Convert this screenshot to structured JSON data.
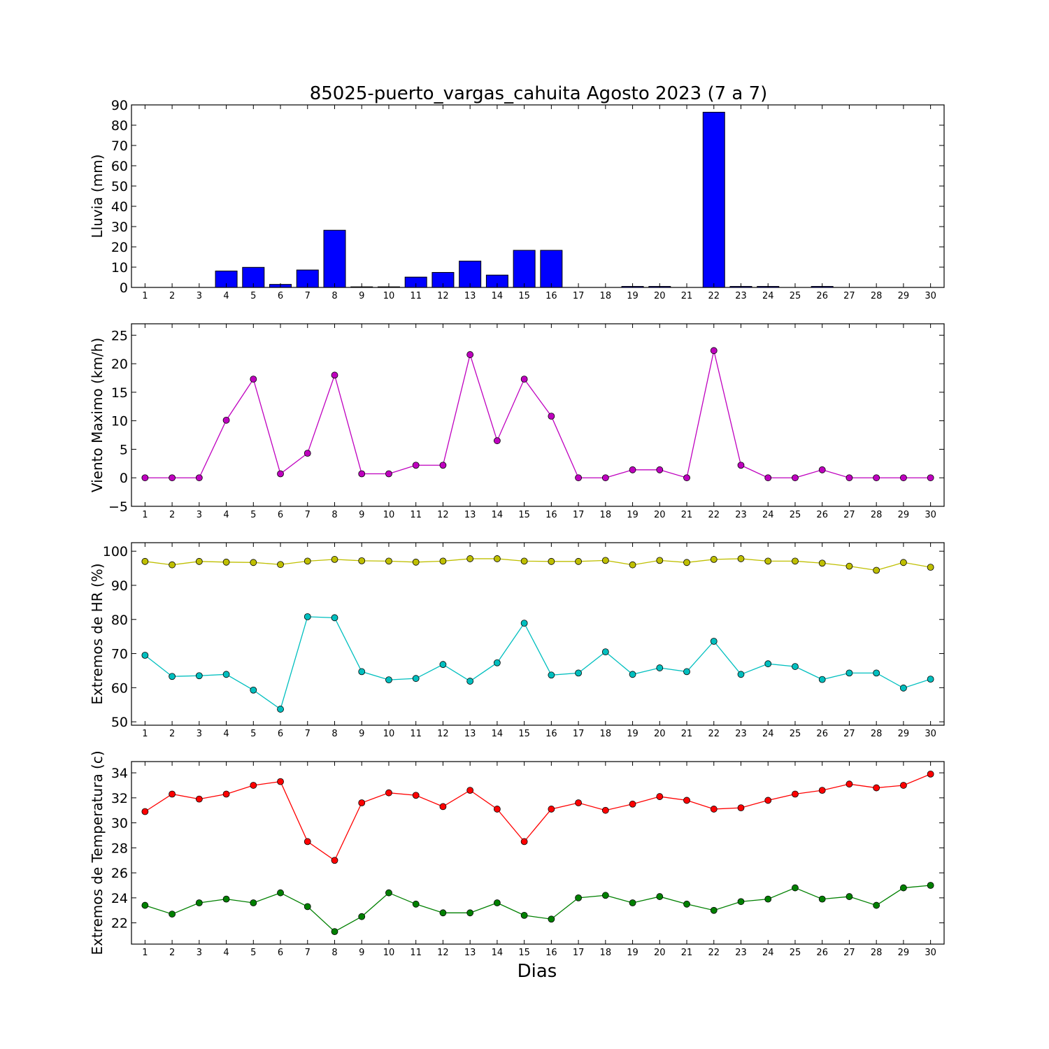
{
  "title": "85025-puerto_vargas_cahuita Agosto 2023  (7 a 7)",
  "xlabel": "Dias",
  "chart_data": [
    {
      "type": "bar",
      "ylabel": "Lluvia (mm)",
      "ylim": [
        0,
        90
      ],
      "yticks": [
        0,
        10,
        20,
        30,
        40,
        50,
        60,
        70,
        80,
        90
      ],
      "xlim": [
        0.5,
        30.5
      ],
      "categories": [
        1,
        2,
        3,
        4,
        5,
        6,
        7,
        8,
        9,
        10,
        11,
        12,
        13,
        14,
        15,
        16,
        17,
        18,
        19,
        20,
        21,
        22,
        23,
        24,
        25,
        26,
        27,
        28,
        29,
        30
      ],
      "series": [
        {
          "color": "#0000ff",
          "values": [
            0,
            0,
            0,
            8.1,
            9.9,
            1.5,
            8.6,
            28.2,
            0.3,
            0.3,
            5.1,
            7.4,
            13.0,
            6.1,
            18.3,
            18.3,
            0,
            0,
            0.5,
            0.5,
            0,
            86.4,
            0.5,
            0.5,
            0,
            0.5,
            0,
            0,
            0,
            0
          ]
        }
      ],
      "grid": false
    },
    {
      "type": "line",
      "ylabel": "Viento Maximo (km/h)",
      "ylim": [
        -5,
        27
      ],
      "yticks": [
        -5,
        0,
        5,
        10,
        15,
        20,
        25
      ],
      "xlim": [
        0.5,
        30.5
      ],
      "x": [
        1,
        2,
        3,
        4,
        5,
        6,
        7,
        8,
        9,
        10,
        11,
        12,
        13,
        14,
        15,
        16,
        17,
        18,
        19,
        20,
        21,
        22,
        23,
        24,
        25,
        26,
        27,
        28,
        29,
        30
      ],
      "series": [
        {
          "color": "#bf00bf",
          "values": [
            0,
            0,
            0,
            10.1,
            17.3,
            0.7,
            4.3,
            18.0,
            0.7,
            0.7,
            2.2,
            2.2,
            21.6,
            6.5,
            17.3,
            10.8,
            0,
            0,
            1.4,
            1.4,
            0,
            22.3,
            2.2,
            0,
            0,
            1.4,
            0,
            0,
            0,
            0
          ]
        }
      ],
      "grid": false
    },
    {
      "type": "line",
      "ylabel": "Extremos de HR (%)",
      "ylim": [
        49,
        102.5
      ],
      "yticks": [
        50,
        60,
        70,
        80,
        90,
        100
      ],
      "xlim": [
        0.5,
        30.5
      ],
      "x": [
        1,
        2,
        3,
        4,
        5,
        6,
        7,
        8,
        9,
        10,
        11,
        12,
        13,
        14,
        15,
        16,
        17,
        18,
        19,
        20,
        21,
        22,
        23,
        24,
        25,
        26,
        27,
        28,
        29,
        30
      ],
      "series": [
        {
          "color": "#bfbf00",
          "values": [
            97.0,
            96.0,
            97.0,
            96.8,
            96.7,
            96.1,
            97.1,
            97.6,
            97.2,
            97.1,
            96.8,
            97.1,
            97.8,
            97.8,
            97.1,
            97.0,
            97.0,
            97.3,
            96.0,
            97.3,
            96.7,
            97.6,
            97.8,
            97.1,
            97.1,
            96.5,
            95.6,
            94.4,
            96.7,
            95.3
          ]
        },
        {
          "color": "#00bfbf",
          "values": [
            69.5,
            63.3,
            63.5,
            63.9,
            59.3,
            53.7,
            80.8,
            80.5,
            64.7,
            62.3,
            62.7,
            66.8,
            61.9,
            67.3,
            78.9,
            63.7,
            64.3,
            70.5,
            63.9,
            65.8,
            64.7,
            73.6,
            63.9,
            67.0,
            66.2,
            62.4,
            64.3,
            64.3,
            59.9,
            62.5
          ]
        }
      ],
      "grid": false
    },
    {
      "type": "line",
      "ylabel": "Extremos de Temperatura (c)",
      "ylim": [
        20.3,
        34.9
      ],
      "yticks": [
        22,
        24,
        26,
        28,
        30,
        32,
        34
      ],
      "xlim": [
        0.5,
        30.5
      ],
      "x": [
        1,
        2,
        3,
        4,
        5,
        6,
        7,
        8,
        9,
        10,
        11,
        12,
        13,
        14,
        15,
        16,
        17,
        18,
        19,
        20,
        21,
        22,
        23,
        24,
        25,
        26,
        27,
        28,
        29,
        30
      ],
      "series": [
        {
          "color": "#ff0000",
          "values": [
            30.9,
            32.3,
            31.9,
            32.3,
            33.0,
            33.3,
            28.5,
            27.0,
            31.6,
            32.4,
            32.2,
            31.3,
            32.6,
            31.1,
            28.5,
            31.1,
            31.6,
            31.0,
            31.5,
            32.1,
            31.8,
            31.1,
            31.2,
            31.8,
            32.3,
            32.6,
            33.1,
            32.8,
            33.0,
            33.9
          ]
        },
        {
          "color": "#008000",
          "values": [
            23.4,
            22.7,
            23.6,
            23.9,
            23.6,
            24.4,
            23.3,
            21.3,
            22.5,
            24.4,
            23.5,
            22.8,
            22.8,
            23.6,
            22.6,
            22.3,
            24.0,
            24.2,
            23.6,
            24.1,
            23.5,
            23.0,
            23.7,
            23.9,
            24.8,
            23.9,
            24.1,
            23.4,
            24.8,
            25.0
          ]
        }
      ],
      "grid": false
    }
  ]
}
